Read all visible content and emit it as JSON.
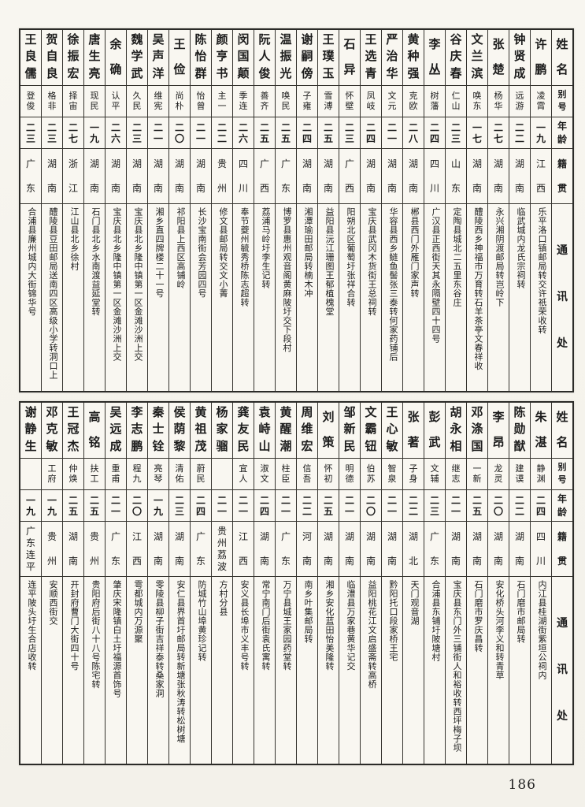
{
  "page": {
    "number": "186"
  },
  "table": {
    "headers": {
      "name": "姓名",
      "alias": "别号",
      "age": "年龄",
      "origin": "籍贯",
      "address": "通讯处"
    },
    "note_column_order": "entries are listed in displayed right-to-left order",
    "blocks": [
      {
        "entries": [
          {
            "name": "许鹏",
            "alias": "凌霄",
            "age": "一九",
            "origin": "江西",
            "address": "乐平洛口镇邮局转交许祇荣收转"
          },
          {
            "name": "钟贤成",
            "alias": "远游",
            "age": "二二",
            "origin": "湖南",
            "address": "临武城内龙氏宗祠转"
          },
          {
            "name": "张楚",
            "alias": "杨华",
            "age": "二七",
            "origin": "湖南",
            "address": "永兴湘阴渡邮局转岂岭下"
          },
          {
            "name": "文兰滨",
            "alias": "唤东",
            "age": "一七",
            "origin": "湖南",
            "address": "醴陵西乡神福市万育转石羊茶亭文春祥收"
          },
          {
            "name": "谷庆春",
            "alias": "仁山",
            "age": "二三",
            "origin": "山东",
            "address": "定陶县城北二五里东谷庄"
          },
          {
            "name": "李丛",
            "alias": "树藩",
            "age": "二四",
            "origin": "四川",
            "address": "广汉县正西街天其永隔壁四十四号"
          },
          {
            "name": "黄种强",
            "alias": "克欧",
            "age": "二八",
            "origin": "湖南",
            "address": "郴县西门外雁门家声转"
          },
          {
            "name": "严治华",
            "alias": "文元",
            "age": "二一",
            "origin": "湖南",
            "address": "华容县西乡鲢鱼髻张三泰转何家药铺后"
          },
          {
            "name": "王选青",
            "alias": "凤岐",
            "age": "二四",
            "origin": "湖南",
            "address": "宝庆县武冈木货街王总祠转"
          },
          {
            "name": "石异",
            "alias": "怀壁",
            "age": "二三",
            "origin": "广西",
            "address": "阳朔北区葡萄圩张祥合转"
          },
          {
            "name": "王璞玉",
            "alias": "雪溥",
            "age": "二五",
            "origin": "湖南",
            "address": "益阳县沅江珊图王郁植槐堂"
          },
          {
            "name": "谢嗣傍",
            "alias": "子雍",
            "age": "二四",
            "origin": "湖南",
            "address": "湘潭瑜田邮局转楠木冲"
          },
          {
            "name": "温振光",
            "alias": "唤民",
            "age": "二五",
            "origin": "广东",
            "address": "博罗县惠州观音阁黄麻陂圩交下段村"
          },
          {
            "name": "阮人俊",
            "alias": "善齐",
            "age": "二五",
            "origin": "广西",
            "address": "荔浦马岭圩李生记转"
          },
          {
            "name": "闵国颠",
            "alias": "季连",
            "age": "二六",
            "origin": "四川",
            "address": "奉节夔州毓秀桥陈志超转"
          },
          {
            "name": "颜亨书",
            "alias": "主一",
            "age": "二二",
            "origin": "贵州",
            "address": "修文县邮局转交文小菁"
          },
          {
            "name": "陈怡群",
            "alias": "怡曾",
            "age": "二一",
            "origin": "湖南",
            "address": "长沙宝南街会芳园四号"
          },
          {
            "name": "王俭",
            "alias": "尚朴",
            "age": "二〇",
            "origin": "湖南",
            "address": "祁阳县上西区高铺岭"
          },
          {
            "name": "吴声洋",
            "alias": "维宪",
            "age": "二一",
            "origin": "湖南",
            "address": "湘乡直四牌楼二十一号"
          },
          {
            "name": "魏学武",
            "alias": "久民",
            "age": "二三",
            "origin": "湖南",
            "address": "宝庆县北乡隆中镇第一区金滩沙洲上交"
          },
          {
            "name": "余确",
            "alias": "认平",
            "age": "二六",
            "origin": "湖南",
            "address": "宝庆县北乡隆中镇第一区金滩沙洲上交"
          },
          {
            "name": "唐生亮",
            "alias": "现民",
            "age": "一九",
            "origin": "湖南",
            "address": "石门县北乡水南渡益延堂转"
          },
          {
            "name": "徐振宏",
            "alias": "择宙",
            "age": "二七",
            "origin": "浙江",
            "address": "江山县北乡徐村"
          },
          {
            "name": "贺自良",
            "alias": "格非",
            "age": "二三",
            "origin": "湖南",
            "address": "醴陵县豆田邮局送南四区高级小学转洞口上"
          },
          {
            "name": "王良儒",
            "alias": "登俊",
            "age": "二三",
            "origin": "广东",
            "address": "合浦县廉州城内大街锦华号"
          }
        ]
      },
      {
        "entries": [
          {
            "name": "朱湛",
            "alias": "静渊",
            "age": "二四",
            "origin": "四川",
            "address": "内江县桂湖街紫垣公祠内"
          },
          {
            "name": "陈勋猷",
            "alias": "建谟",
            "age": "二二",
            "origin": "湖南",
            "address": "石门磨市邮局转"
          },
          {
            "name": "李昂",
            "alias": "龙灵",
            "age": "二〇",
            "origin": "湖南",
            "address": "安化桥头河李义和转青草"
          },
          {
            "name": "邓涤国",
            "alias": "一新",
            "age": "二五",
            "origin": "湖南",
            "address": "石门磨市罗庆昌转"
          },
          {
            "name": "胡永相",
            "alias": "继志",
            "age": "二一",
            "origin": "湖南",
            "address": "宝庆县东门外三铺街人和裕收转西坪梅子坝"
          },
          {
            "name": "彭武",
            "alias": "文辅",
            "age": "二三",
            "origin": "广东",
            "address": "合浦县东铺圩陂塘村"
          },
          {
            "name": "张著",
            "alias": "子身",
            "age": "二二",
            "origin": "湖北",
            "address": "天门观音湖"
          },
          {
            "name": "王心敏",
            "alias": "智泉",
            "age": "二一",
            "origin": "湖南",
            "address": "黔阳托口段家桥王宅"
          },
          {
            "name": "文霸钮",
            "alias": "伯苏",
            "age": "二〇",
            "origin": "湖南",
            "address": "益阳桃花江文启盛斋转高桥"
          },
          {
            "name": "邹新民",
            "alias": "明德",
            "age": "二一",
            "origin": "湖南",
            "address": "临澧县万家巷黄华记交"
          },
          {
            "name": "刘策",
            "alias": "怀初",
            "age": "二五",
            "origin": "湖南",
            "address": "湘乡安化蓝田怡美隆转"
          },
          {
            "name": "周维宏",
            "alias": "信吾",
            "age": "二二",
            "origin": "河南",
            "address": "南乡叶集邮局转"
          },
          {
            "name": "黄醒潮",
            "alias": "柱臣",
            "age": "二一",
            "origin": "广东",
            "address": "万宁县城王家园药堂转"
          },
          {
            "name": "袁峙山",
            "alias": "淑文",
            "age": "二四",
            "origin": "湖南",
            "address": "常宁南门后街袁氏寓转"
          },
          {
            "name": "龚友民",
            "alias": "宜人",
            "age": "二一",
            "origin": "江西",
            "address": "安义县长埠市义丰号转"
          },
          {
            "name": "杨家骝",
            "alias": "",
            "age": "二一",
            "origin": "贵州荔波",
            "address": "方村分县"
          },
          {
            "name": "黄祖茂",
            "alias": "蔚民",
            "age": "二四",
            "origin": "广东",
            "address": "防城竹山埠黄珍记转"
          },
          {
            "name": "侯荫黎",
            "alias": "清佑",
            "age": "二三",
            "origin": "湖南",
            "address": "安仁县界首圩邮局转新塘张秋涛转松树塘"
          },
          {
            "name": "秦士铨",
            "alias": "亮琴",
            "age": "一九",
            "origin": "湖南",
            "address": "零陵县柳子街吉祥泰转桑家洞"
          },
          {
            "name": "李志鹏",
            "alias": "程九",
            "age": "二〇",
            "origin": "江西",
            "address": "雩都城内万源聚"
          },
          {
            "name": "吴远成",
            "alias": "重甫",
            "age": "二一",
            "origin": "广东",
            "address": "肇庆宋隆镇白土圩福源首饰号"
          },
          {
            "name": "高铭",
            "alias": "扶工",
            "age": "二五",
            "origin": "贵州",
            "address": "贵阳府后街八十八号陈宅转"
          },
          {
            "name": "王冠杰",
            "alias": "仲焕",
            "age": "二五",
            "origin": "湖南",
            "address": "开封府曹门大街四十号"
          },
          {
            "name": "邓克敏",
            "alias": "工府",
            "age": "一九",
            "origin": "贵州",
            "address": "安顺西街交"
          },
          {
            "name": "谢静生",
            "alias": "",
            "age": "一九",
            "origin": "广东连平",
            "address": "连平陂头圩生合店收转"
          }
        ]
      }
    ]
  }
}
